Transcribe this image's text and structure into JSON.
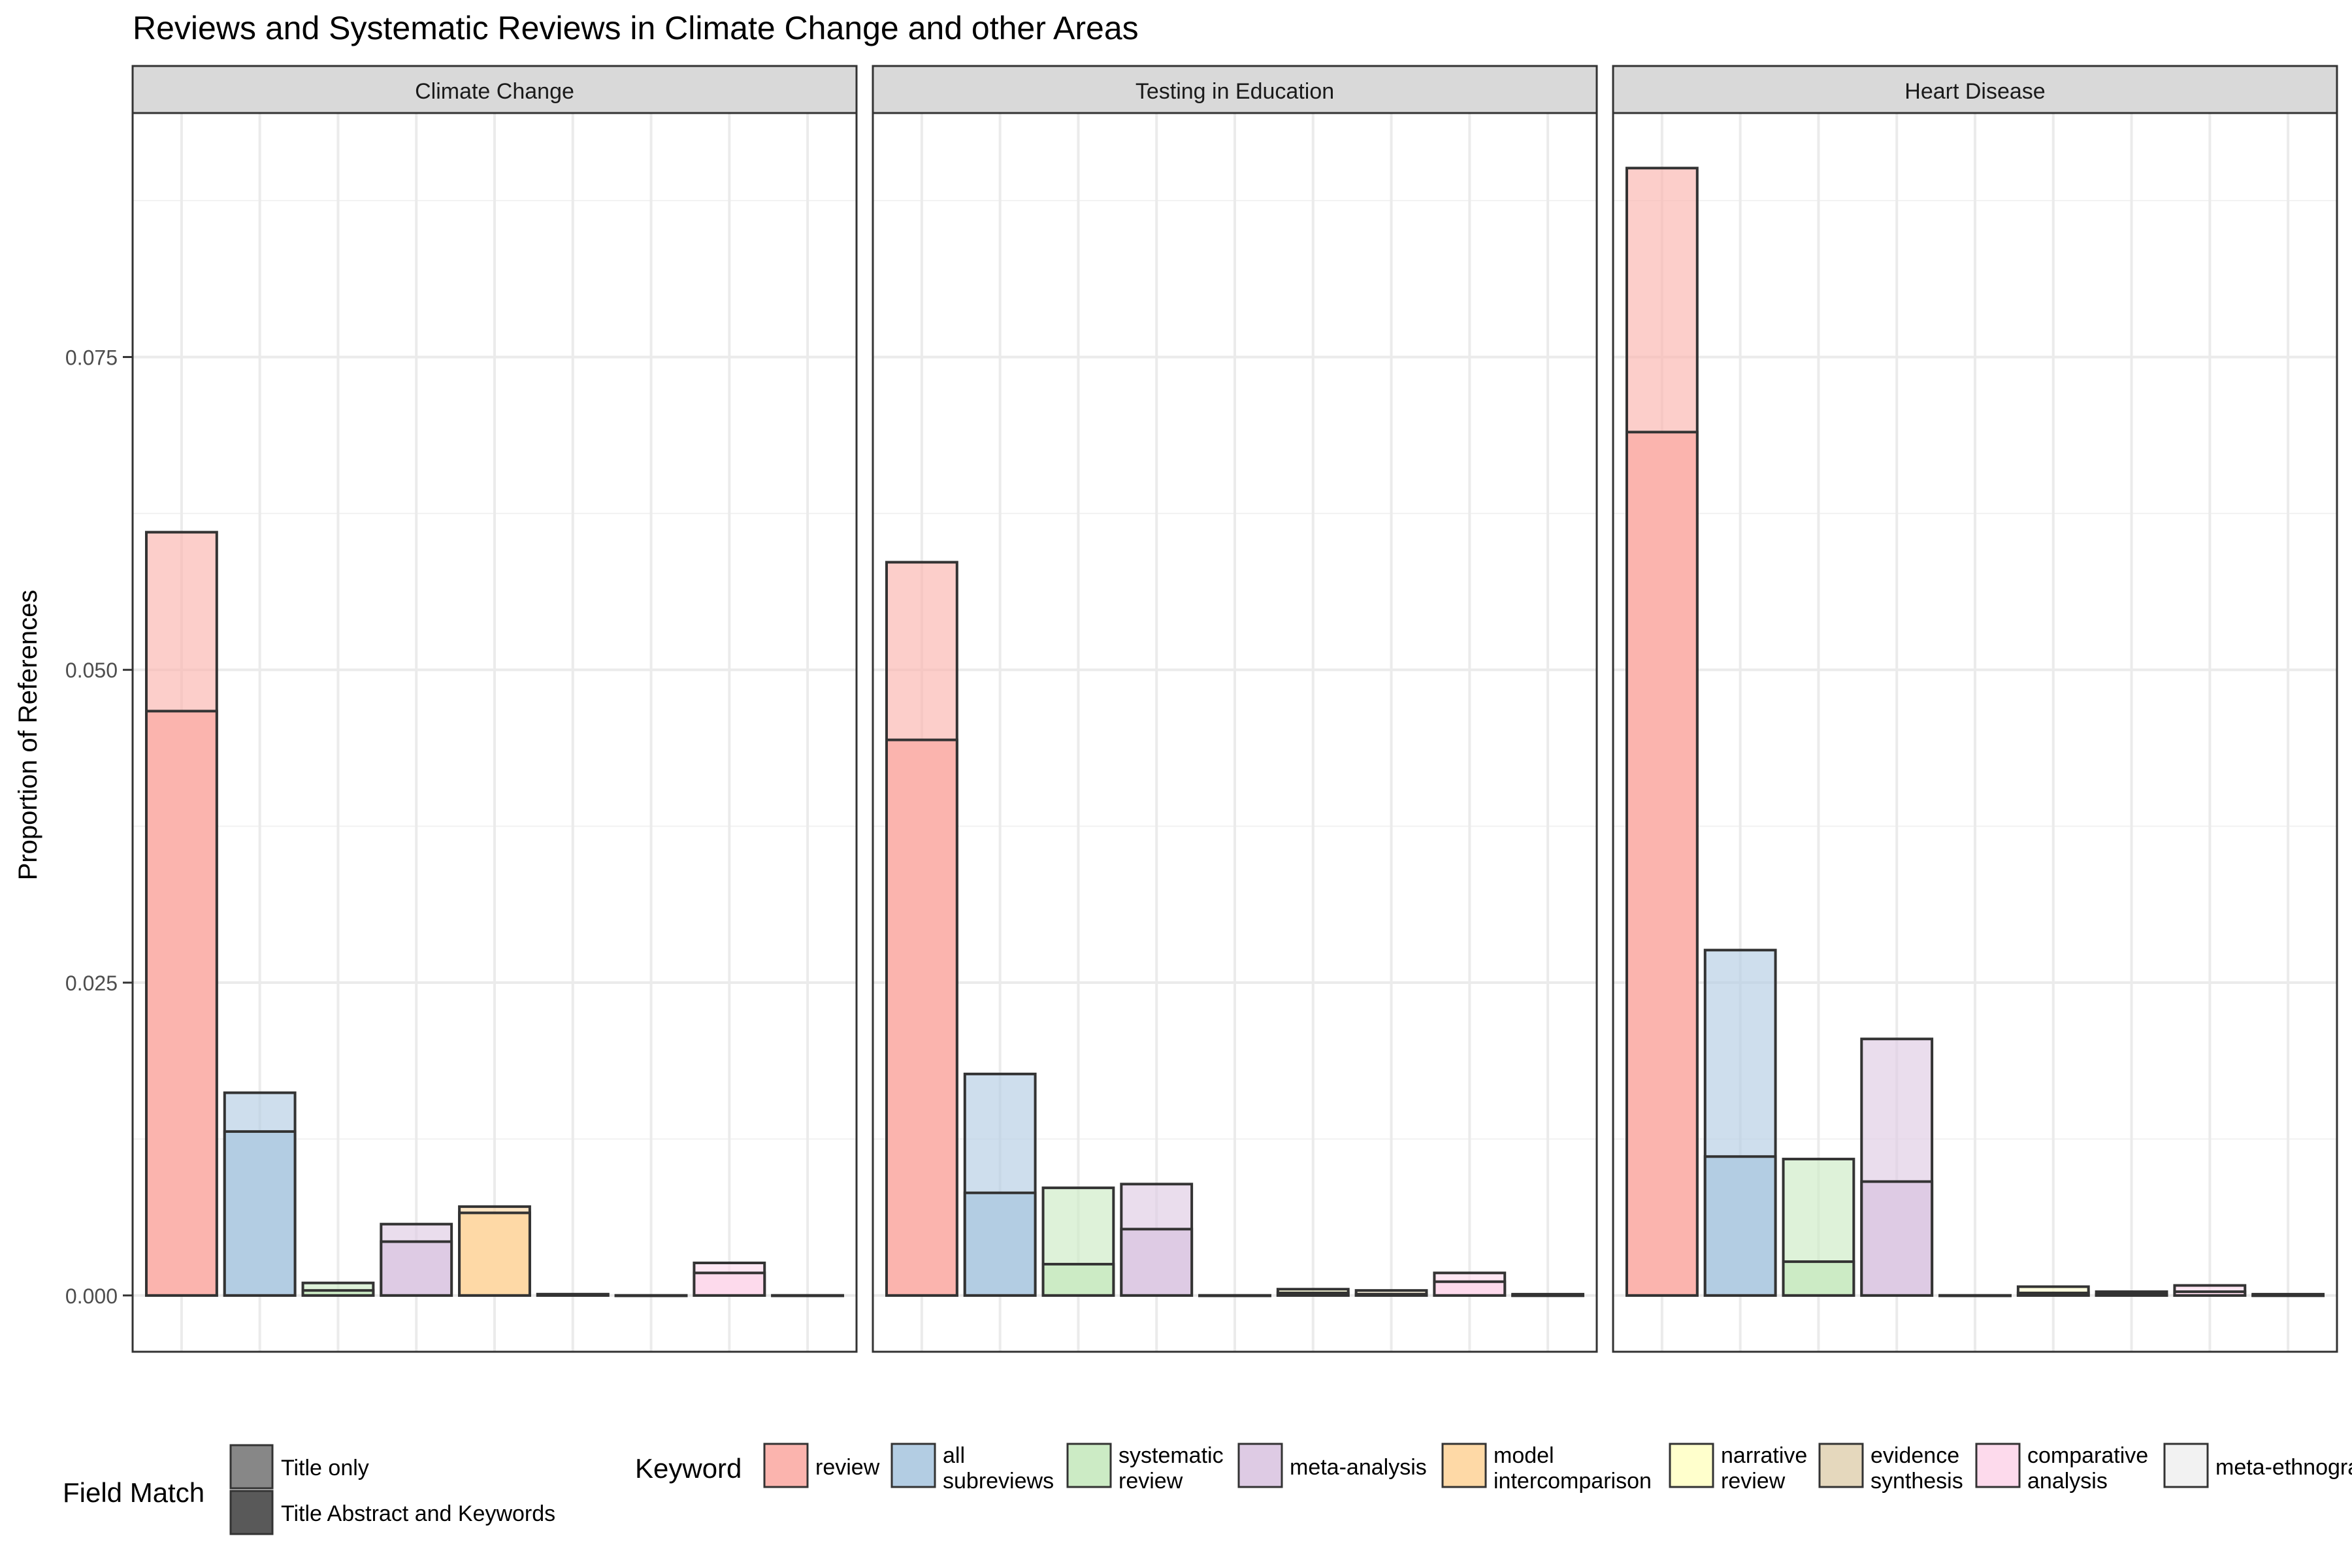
{
  "chart_data": {
    "type": "bar",
    "title": "Reviews and Systematic Reviews in Climate Change and other Areas",
    "ylabel": "Proportion of References",
    "xlabel": "",
    "ylim": [
      -0.0045,
      0.0945
    ],
    "y_ticks": [
      0,
      0.025,
      0.05,
      0.075
    ],
    "y_tick_labels": [
      "0.000",
      "0.025",
      "0.050",
      "0.075"
    ],
    "grid": true,
    "legend_position": "bottom",
    "facets": [
      "Climate Change",
      "Testing in Education",
      "Heart Disease"
    ],
    "categories": [
      "review",
      "all subreviews",
      "systematic review",
      "meta-analysis",
      "model intercomparison",
      "narrative review",
      "evidence synthesis",
      "comparative analysis",
      "meta-ethnography"
    ],
    "keyword_colors": [
      "#FBB4AE",
      "#B3CDE3",
      "#CCEBC5",
      "#DECBE4",
      "#FED9A6",
      "#FFFFCC",
      "#E5D8BD",
      "#FDDAEC",
      "#F2F2F2"
    ],
    "series": [
      {
        "name": "Title only",
        "facet_values": [
          [
            0.0467,
            0.0131,
            0.0004,
            0.0043,
            0.0066,
            0.0001,
            0.0,
            0.0018,
            0.0
          ],
          [
            0.0444,
            0.0082,
            0.0025,
            0.0053,
            0.0,
            0.0002,
            0.0001,
            0.0011,
            0.0
          ],
          [
            0.069,
            0.0111,
            0.0027,
            0.0091,
            0.0,
            0.0002,
            0.0001,
            0.0003,
            0.0
          ]
        ]
      },
      {
        "name": "Title Abstract and Keywords",
        "facet_values": [
          [
            0.061,
            0.0162,
            0.001,
            0.0057,
            0.0071,
            0.0001,
            0.0,
            0.0026,
            0.0
          ],
          [
            0.0586,
            0.0177,
            0.0086,
            0.0089,
            0.0,
            0.0005,
            0.0004,
            0.0018,
            0.0001
          ],
          [
            0.0901,
            0.0276,
            0.0109,
            0.0205,
            0.0,
            0.0007,
            0.0003,
            0.0008,
            0.0001
          ]
        ]
      }
    ],
    "legend": {
      "field_match_title": "Field Match",
      "field_match_items": [
        "Title only",
        "Title Abstract and Keywords"
      ],
      "keyword_title": "Keyword",
      "keyword_items": [
        [
          "review"
        ],
        [
          "all",
          "subreviews"
        ],
        [
          "systematic",
          "review"
        ],
        [
          "meta-analysis"
        ],
        [
          "model",
          "intercomparison"
        ],
        [
          "narrative",
          "review"
        ],
        [
          "evidence",
          "synthesis"
        ],
        [
          "comparative",
          "analysis"
        ],
        [
          "meta-ethnography"
        ]
      ]
    }
  }
}
